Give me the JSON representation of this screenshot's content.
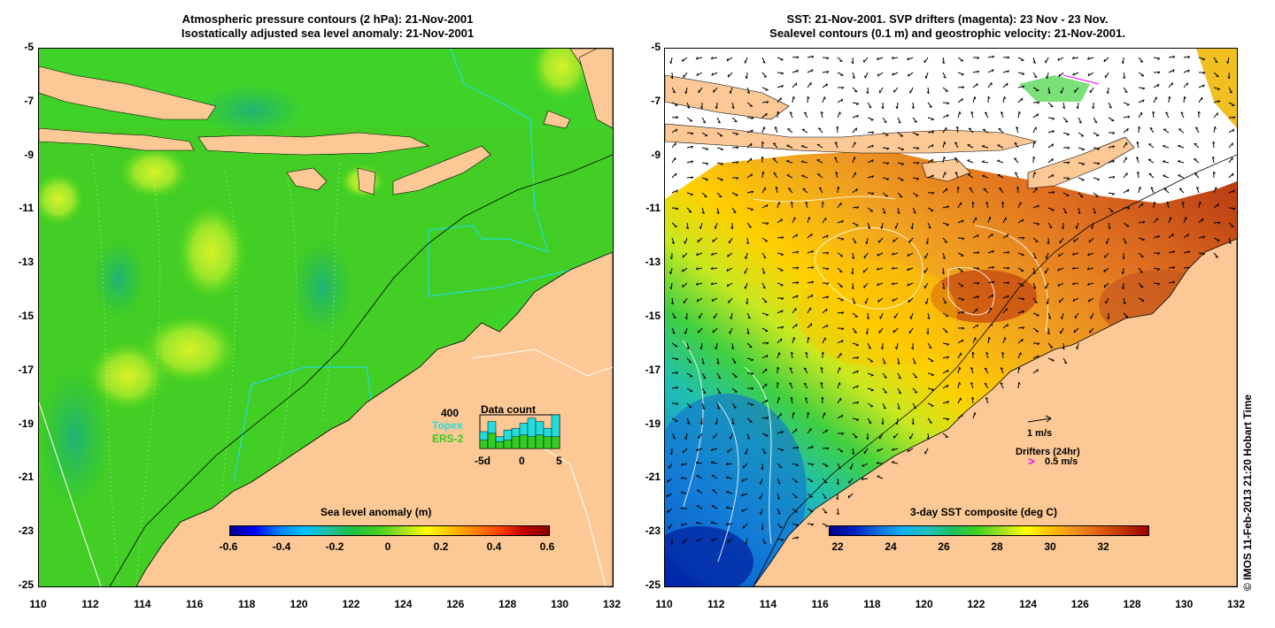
{
  "left_panel": {
    "title_line1": "Atmospheric pressure contours (2 hPa): 21-Nov-2001",
    "title_line2": "Isostatically adjusted sea level anomaly: 21-Nov-2001",
    "y_ticks": [
      "-5",
      "-7",
      "-9",
      "-11",
      "-13",
      "-15",
      "-17",
      "-19",
      "-21",
      "-23",
      "-25"
    ],
    "x_ticks": [
      "110",
      "112",
      "114",
      "116",
      "118",
      "120",
      "122",
      "124",
      "126",
      "128",
      "130",
      "132"
    ],
    "colorbar_label": "Sea level anomaly (m)",
    "colorbar_ticks": [
      "-0.6",
      "-0.4",
      "-0.2",
      "0",
      "0.2",
      "0.4",
      "0.6"
    ],
    "inset": {
      "max_label": "400",
      "title": "Data count",
      "series1": "Topex",
      "series2": "ERS-2",
      "x_ticks": [
        "-5d",
        "0",
        "5"
      ],
      "series1_color": "#22dddd",
      "series2_color": "#33cc22"
    }
  },
  "right_panel": {
    "title_line1": "SST: 21-Nov-2001. SVP drifters (magenta): 23 Nov - 23 Nov.",
    "title_line2": "Sealevel contours (0.1 m) and geostrophic velocity: 21-Nov-2001.",
    "y_ticks": [
      "-5",
      "-7",
      "-9",
      "-11",
      "-13",
      "-15",
      "-17",
      "-19",
      "-21",
      "-23",
      "-25"
    ],
    "x_ticks": [
      "110",
      "112",
      "114",
      "116",
      "118",
      "120",
      "122",
      "124",
      "126",
      "128",
      "130",
      "132"
    ],
    "colorbar_label": "3-day SST composite (deg C)",
    "colorbar_ticks": [
      "22",
      "24",
      "26",
      "28",
      "30",
      "32"
    ],
    "velocity_scale": "1 m/s",
    "drifters_label": "Drifters (24hr)",
    "drifter_scale": "0.5 m/s",
    "drifter_marker": ">"
  },
  "copyright": "© IMOS 11-Feb-2013 21:20 Hobart Time",
  "colors": {
    "land": "#fbc896",
    "ocean_green": "#22cc22",
    "contour": "#000000",
    "cyan_line": "#22dddd",
    "drifter": "#ff00ff"
  }
}
